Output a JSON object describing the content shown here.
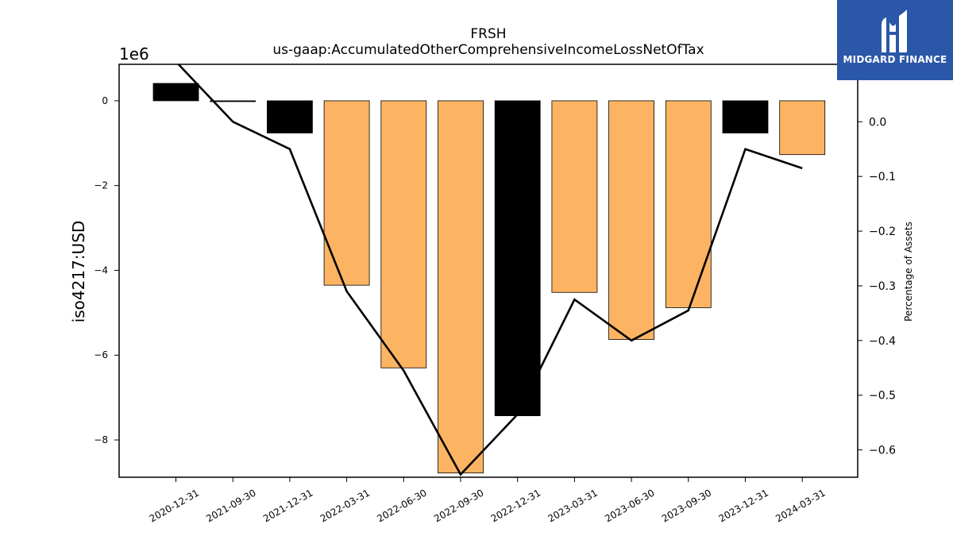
{
  "chart_data": {
    "type": "bar",
    "title": "FRSH",
    "subtitle": "us-gaap:AccumulatedOtherComprehensiveIncomeLossNetOfTax",
    "ylabel": "iso4217:USD",
    "y2label": "Percentage of Assets",
    "y_offset_label": "1e6",
    "categories": [
      "2020-12-31",
      "2021-09-30",
      "2021-12-31",
      "2022-03-31",
      "2022-06-30",
      "2022-09-30",
      "2022-12-31",
      "2023-03-31",
      "2023-06-30",
      "2023-09-30",
      "2023-12-31",
      "2024-03-31"
    ],
    "bar_values": [
      410000,
      -20000,
      -760000,
      -4350000,
      -6300000,
      -8780000,
      -7430000,
      -4520000,
      -5630000,
      -4880000,
      -760000,
      -1270000
    ],
    "bar_colors": [
      "#000000",
      "#000000",
      "#000000",
      "#fdb462",
      "#fdb462",
      "#fdb462",
      "#000000",
      "#fdb462",
      "#fdb462",
      "#fdb462",
      "#000000",
      "#fdb462"
    ],
    "line_values": [
      0.11,
      0.0,
      -0.05,
      -0.31,
      -0.455,
      -0.645,
      -0.535,
      -0.325,
      -0.4,
      -0.345,
      -0.05,
      -0.085
    ],
    "ylim": [
      -8880000,
      860000
    ],
    "y2lim": [
      -0.65,
      0.105
    ],
    "yticks": [
      0,
      -2,
      -4,
      -6,
      -8
    ],
    "y2ticks": [
      "0.0",
      "−0.1",
      "−0.2",
      "−0.3",
      "−0.4",
      "−0.5",
      "−0.6"
    ],
    "ytick_labels": [
      "0",
      "−2",
      "−4",
      "−6",
      "−8"
    ],
    "y2tick_values": [
      0.0,
      -0.1,
      -0.2,
      -0.3,
      -0.4,
      -0.5,
      -0.6
    ],
    "grid": false
  },
  "logo": {
    "text": "MIDGARD FINANCE",
    "bg_color": "#2b57a8"
  }
}
